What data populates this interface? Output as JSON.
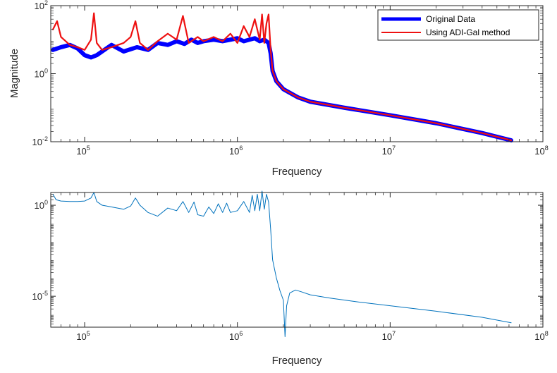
{
  "chart_data": [
    {
      "type": "line",
      "xscale": "log",
      "yscale": "log",
      "xlim": [
        60000,
        100000000
      ],
      "ylim": [
        0.01,
        100
      ],
      "xlabel": "Frequency",
      "ylabel": "Magnitude",
      "x_ticks": [
        {
          "base": "10",
          "exp": "5",
          "value": 100000
        },
        {
          "base": "10",
          "exp": "6",
          "value": 1000000
        },
        {
          "base": "10",
          "exp": "7",
          "value": 10000000
        },
        {
          "base": "10",
          "exp": "8",
          "value": 100000000
        }
      ],
      "y_ticks": [
        {
          "base": "10",
          "exp": "-2",
          "value": 0.01
        },
        {
          "base": "10",
          "exp": "0",
          "value": 1
        },
        {
          "base": "10",
          "exp": "2",
          "value": 100
        }
      ],
      "legend_position": "top-right",
      "series": [
        {
          "name": "Original Data",
          "color": "#0000ff",
          "x": [
            62000,
            70000,
            80000,
            90000,
            100000,
            110000,
            120000,
            150000,
            180000,
            220000,
            260000,
            300000,
            350000,
            400000,
            450000,
            500000,
            550000,
            600000,
            700000,
            800000,
            900000,
            1000000,
            1100000,
            1200000,
            1300000,
            1400000,
            1500000,
            1600000,
            1650000,
            1700000,
            1800000,
            2000000,
            2500000,
            3000000,
            5000000,
            10000000,
            20000000,
            40000000,
            62000000
          ],
          "y": [
            5,
            6,
            7,
            5.5,
            3.5,
            3,
            3.5,
            7,
            4.5,
            6,
            5,
            8,
            7,
            9,
            7.5,
            10,
            8,
            9,
            10,
            9,
            10,
            11,
            9,
            10,
            11,
            9,
            10,
            8,
            4,
            1.2,
            0.6,
            0.35,
            0.2,
            0.15,
            0.1,
            0.06,
            0.035,
            0.018,
            0.011
          ]
        },
        {
          "name": "Using ADI-Gal method",
          "color": "#ee1111",
          "x": [
            62000,
            66000,
            70000,
            80000,
            90000,
            100000,
            110000,
            115000,
            120000,
            130000,
            150000,
            180000,
            200000,
            215000,
            230000,
            260000,
            300000,
            350000,
            400000,
            440000,
            480000,
            550000,
            600000,
            700000,
            800000,
            900000,
            1000000,
            1100000,
            1200000,
            1300000,
            1400000,
            1450000,
            1500000,
            1550000,
            1600000,
            1650000,
            1700000,
            1800000,
            2000000,
            2500000,
            3000000,
            5000000,
            10000000,
            20000000,
            40000000,
            62000000
          ],
          "y": [
            20,
            35,
            12,
            7,
            6,
            5,
            10,
            60,
            8,
            5,
            6,
            8,
            12,
            35,
            8,
            5,
            9,
            15,
            10,
            50,
            8,
            12,
            9,
            12,
            9,
            15,
            8,
            25,
            12,
            40,
            10,
            55,
            8,
            30,
            55,
            5,
            1.2,
            0.6,
            0.35,
            0.2,
            0.15,
            0.1,
            0.06,
            0.035,
            0.018,
            0.011
          ]
        }
      ]
    },
    {
      "type": "line",
      "xscale": "log",
      "yscale": "log",
      "xlim": [
        60000,
        100000000
      ],
      "ylim": [
        2e-07,
        5
      ],
      "xlabel": "Frequency",
      "ylabel": "",
      "x_ticks": [
        {
          "base": "10",
          "exp": "5",
          "value": 100000
        },
        {
          "base": "10",
          "exp": "6",
          "value": 1000000
        },
        {
          "base": "10",
          "exp": "7",
          "value": 10000000
        },
        {
          "base": "10",
          "exp": "8",
          "value": 100000000
        }
      ],
      "y_ticks": [
        {
          "base": "10",
          "exp": "0",
          "value": 1
        },
        {
          "base": "10",
          "exp": "-5",
          "value": 1e-05
        }
      ],
      "series": [
        {
          "name": "",
          "color": "#0072bd",
          "x": [
            62000,
            65000,
            70000,
            80000,
            90000,
            100000,
            110000,
            115000,
            120000,
            130000,
            150000,
            180000,
            200000,
            215000,
            230000,
            260000,
            300000,
            350000,
            400000,
            440000,
            480000,
            520000,
            550000,
            600000,
            650000,
            700000,
            750000,
            800000,
            850000,
            900000,
            1000000,
            1100000,
            1200000,
            1250000,
            1300000,
            1350000,
            1400000,
            1450000,
            1500000,
            1550000,
            1600000,
            1650000,
            1700000,
            1800000,
            1900000,
            2000000,
            2050000,
            2100000,
            2200000,
            2400000,
            2600000,
            3000000,
            4000000,
            6000000,
            10000000,
            20000000,
            40000000,
            62000000
          ],
          "y": [
            4,
            2,
            1.7,
            1.6,
            1.6,
            1.7,
            2.5,
            5,
            1.6,
            1,
            0.8,
            0.6,
            0.9,
            2.5,
            1,
            0.4,
            0.25,
            0.7,
            0.5,
            1.6,
            0.4,
            1.5,
            0.3,
            0.25,
            0.8,
            0.35,
            1.2,
            0.4,
            1.3,
            0.4,
            0.5,
            1.6,
            0.4,
            3.5,
            0.5,
            4,
            0.5,
            6,
            0.6,
            4,
            1.5,
            0.05,
            0.001,
            0.0001,
            2e-05,
            6e-06,
            6e-08,
            3e-06,
            1.5e-05,
            2.2e-05,
            1.8e-05,
            1.2e-05,
            8e-06,
            5e-06,
            3e-06,
            1.5e-06,
            7e-07,
            3.5e-07
          ]
        }
      ]
    }
  ]
}
